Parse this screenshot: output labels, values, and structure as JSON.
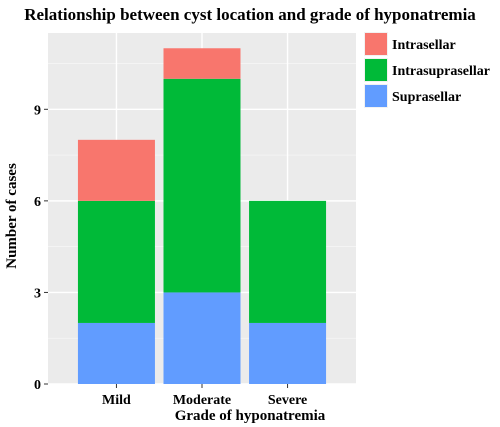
{
  "chart_data": {
    "type": "bar",
    "stacked": true,
    "title": "Relationship between cyst location and grade of  hyponatremia",
    "xlabel": "Grade of hyponatremia",
    "ylabel": "Number of cases",
    "categories": [
      "Mild",
      "Moderate",
      "Severe"
    ],
    "ylim": [
      0,
      11.5
    ],
    "yticks": [
      0,
      3,
      6,
      9
    ],
    "grid": true,
    "legend_position": "right",
    "series": [
      {
        "name": "Suprasellar",
        "color": "#619cff",
        "values": [
          2,
          3,
          2
        ]
      },
      {
        "name": "Intrasuprasellar",
        "color": "#00ba38",
        "values": [
          4,
          7,
          4
        ]
      },
      {
        "name": "Intrasellar",
        "color": "#f8766d",
        "values": [
          2,
          1,
          0
        ]
      }
    ],
    "legend_order": [
      "Intrasellar",
      "Intrasuprasellar",
      "Suprasellar"
    ]
  }
}
